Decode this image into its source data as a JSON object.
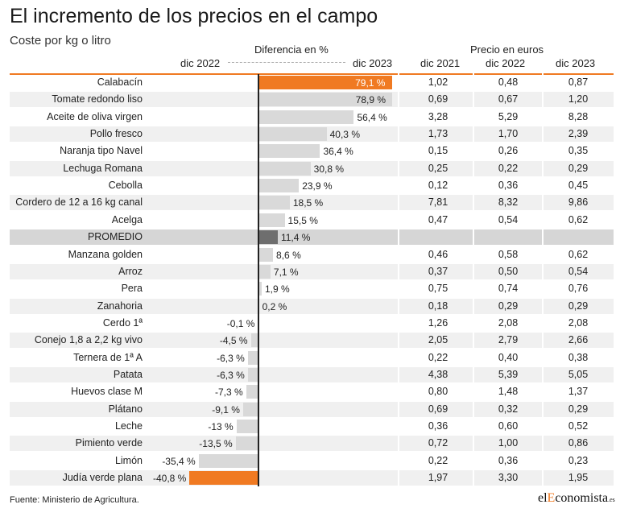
{
  "title": "El incremento de los precios en el campo",
  "subtitle": "Coste por kg o litro",
  "headers": {
    "diff_title": "Diferencia en %",
    "diff_left": "dic 2022",
    "diff_right": "dic 2023",
    "price_title": "Precio en euros",
    "col1": "dic 2021",
    "col2": "dic 2022",
    "col3": "dic 2023"
  },
  "source": "Fuente: Ministerio de Agricultura.",
  "logo": {
    "part1": "el",
    "part2": "E",
    "part3": "conomista",
    "part4": ".es"
  },
  "colors": {
    "accent": "#f07a22",
    "bar": "#d9d9d9",
    "average_bar": "#6e6e6e",
    "stripe": "#f0f0f0"
  },
  "chart_data": {
    "type": "bar",
    "orientation": "horizontal",
    "title": "El incremento de los precios en el campo",
    "subtitle": "Coste por kg o litro",
    "xlim": [
      -45,
      90
    ],
    "rows": [
      {
        "label": "Calabacín",
        "pct": 79.1,
        "pct_text": "79,1 %",
        "p2021": "1,02",
        "p2022": "0,48",
        "p2023": "0,87",
        "highlight": true
      },
      {
        "label": "Tomate redondo liso",
        "pct": 78.9,
        "pct_text": "78,9 %",
        "p2021": "0,69",
        "p2022": "0,67",
        "p2023": "1,20"
      },
      {
        "label": "Aceite de oliva virgen",
        "pct": 56.4,
        "pct_text": "56,4 %",
        "p2021": "3,28",
        "p2022": "5,29",
        "p2023": "8,28"
      },
      {
        "label": "Pollo fresco",
        "pct": 40.3,
        "pct_text": "40,3 %",
        "p2021": "1,73",
        "p2022": "1,70",
        "p2023": "2,39"
      },
      {
        "label": "Naranja tipo Navel",
        "pct": 36.4,
        "pct_text": "36,4 %",
        "p2021": "0,15",
        "p2022": "0,26",
        "p2023": "0,35"
      },
      {
        "label": "Lechuga Romana",
        "pct": 30.8,
        "pct_text": "30,8 %",
        "p2021": "0,25",
        "p2022": "0,22",
        "p2023": "0,29"
      },
      {
        "label": "Cebolla",
        "pct": 23.9,
        "pct_text": "23,9 %",
        "p2021": "0,12",
        "p2022": "0,36",
        "p2023": "0,45"
      },
      {
        "label": "Cordero de 12 a 16 kg canal",
        "pct": 18.5,
        "pct_text": "18,5 %",
        "p2021": "7,81",
        "p2022": "8,32",
        "p2023": "9,86"
      },
      {
        "label": "Acelga",
        "pct": 15.5,
        "pct_text": "15,5 %",
        "p2021": "0,47",
        "p2022": "0,54",
        "p2023": "0,62"
      },
      {
        "label": "PROMEDIO",
        "pct": 11.4,
        "pct_text": "11,4 %",
        "p2021": "",
        "p2022": "",
        "p2023": "",
        "average": true
      },
      {
        "label": "Manzana golden",
        "pct": 8.6,
        "pct_text": "8,6 %",
        "p2021": "0,46",
        "p2022": "0,58",
        "p2023": "0,62"
      },
      {
        "label": "Arroz",
        "pct": 7.1,
        "pct_text": "7,1 %",
        "p2021": "0,37",
        "p2022": "0,50",
        "p2023": "0,54"
      },
      {
        "label": "Pera",
        "pct": 1.9,
        "pct_text": "1,9 %",
        "p2021": "0,75",
        "p2022": "0,74",
        "p2023": "0,76"
      },
      {
        "label": "Zanahoria",
        "pct": 0.2,
        "pct_text": "0,2 %",
        "p2021": "0,18",
        "p2022": "0,29",
        "p2023": "0,29"
      },
      {
        "label": "Cerdo 1ª",
        "pct": -0.1,
        "pct_text": "-0,1 %",
        "p2021": "1,26",
        "p2022": "2,08",
        "p2023": "2,08"
      },
      {
        "label": "Conejo 1,8 a 2,2 kg vivo",
        "pct": -4.5,
        "pct_text": "-4,5 %",
        "p2021": "2,05",
        "p2022": "2,79",
        "p2023": "2,66"
      },
      {
        "label": "Ternera de 1ª A",
        "pct": -6.3,
        "pct_text": "-6,3 %",
        "p2021": "0,22",
        "p2022": "0,40",
        "p2023": "0,38"
      },
      {
        "label": "Patata",
        "pct": -6.3,
        "pct_text": "-6,3 %",
        "p2021": "4,38",
        "p2022": "5,39",
        "p2023": "5,05"
      },
      {
        "label": "Huevos clase M",
        "pct": -7.3,
        "pct_text": "-7,3 %",
        "p2021": "0,80",
        "p2022": "1,48",
        "p2023": "1,37"
      },
      {
        "label": "Plátano",
        "pct": -9.1,
        "pct_text": "-9,1 %",
        "p2021": "0,69",
        "p2022": "0,32",
        "p2023": "0,29"
      },
      {
        "label": "Leche",
        "pct": -13,
        "pct_text": "-13 %",
        "p2021": "0,36",
        "p2022": "0,60",
        "p2023": "0,52"
      },
      {
        "label": "Pimiento verde",
        "pct": -13.5,
        "pct_text": "-13,5 %",
        "p2021": "0,72",
        "p2022": "1,00",
        "p2023": "0,86"
      },
      {
        "label": "Limón",
        "pct": -35.4,
        "pct_text": "-35,4 %",
        "p2021": "0,22",
        "p2022": "0,36",
        "p2023": "0,23"
      },
      {
        "label": "Judía verde plana",
        "pct": -40.8,
        "pct_text": "-40,8 %",
        "p2021": "1,97",
        "p2022": "3,30",
        "p2023": "1,95",
        "highlight": true
      }
    ]
  }
}
